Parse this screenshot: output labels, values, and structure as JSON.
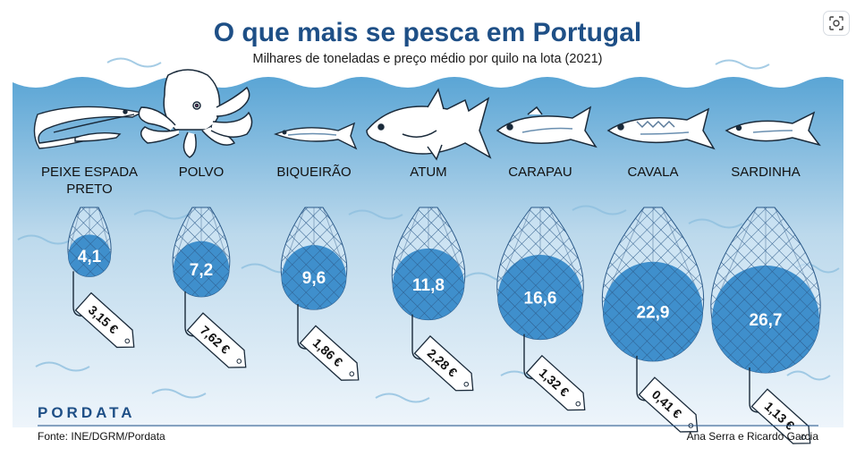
{
  "header": {
    "title": "O que mais se pesca em Portugal",
    "subtitle": "Milhares de toneladas e preço médio por quilo na lota (2021)"
  },
  "chart_data": {
    "type": "bubble",
    "title": "O que mais se pesca em Portugal",
    "subtitle": "Milhares de toneladas e preço médio por quilo na lota (2021)",
    "categories": [
      [
        "PEIXE ESPADA",
        "PRETO"
      ],
      [
        "POLVO"
      ],
      [
        "BIQUEIRÃO"
      ],
      [
        "ATUM"
      ],
      [
        "CARAPAU"
      ],
      [
        "CAVALA"
      ],
      [
        "SARDINHA"
      ]
    ],
    "values": [
      4.1,
      7.2,
      9.6,
      11.8,
      16.6,
      22.9,
      26.7
    ],
    "value_labels": [
      "4,1",
      "7,2",
      "9,6",
      "11,8",
      "16,6",
      "22,9",
      "26,7"
    ],
    "prices": [
      3.15,
      7.62,
      1.86,
      2.28,
      1.32,
      0.41,
      1.13
    ],
    "price_labels": [
      "3,15 €",
      "7,62 €",
      "1,86 €",
      "2,28 €",
      "1,32 €",
      "0,41 €",
      "1,13 €"
    ],
    "fish_icons": [
      "black-scabbardfish-icon",
      "octopus-icon",
      "anchovy-icon",
      "tuna-icon",
      "horse-mackerel-icon",
      "mackerel-icon",
      "sardine-icon"
    ],
    "colors": {
      "sea": "#5ba7d6",
      "net_fill": "#3f8fcc",
      "net_line": "#2d5b8a",
      "title": "#1e4f86"
    }
  },
  "footer": {
    "brand": "PORDATA",
    "source": "Fonte: INE/DGRM/Pordata",
    "credit": "Ana Serra e Ricardo  Garcia"
  },
  "toolbar": {
    "lens_icon": "lens-icon"
  }
}
